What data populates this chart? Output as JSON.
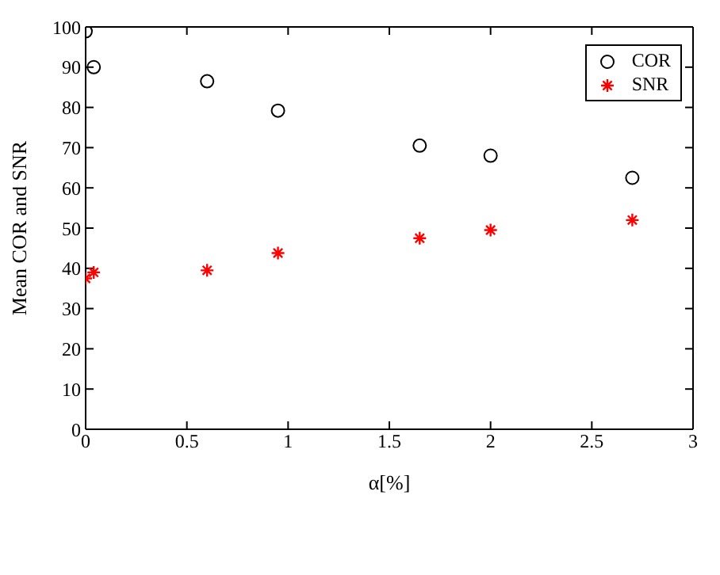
{
  "chart_data": {
    "type": "scatter",
    "xlabel": "α[%]",
    "ylabel": "Mean COR and SNR",
    "x": [
      0,
      0.04,
      0.6,
      0.95,
      1.65,
      2.0,
      2.7
    ],
    "series": [
      {
        "name": "COR",
        "color": "#000000",
        "marker": "circle",
        "values": [
          98.9,
          90,
          86.5,
          79.2,
          70.5,
          68,
          62.5
        ]
      },
      {
        "name": "SNR",
        "color": "#ff0000",
        "marker": "cross",
        "values": [
          37.5,
          39,
          39.5,
          43.8,
          47.5,
          49.5,
          52
        ]
      }
    ],
    "xlim": [
      0,
      3
    ],
    "xticks": [
      0,
      0.5,
      1,
      1.5,
      2,
      2.5,
      3
    ],
    "ylim": [
      0,
      100
    ],
    "yticks": [
      0,
      10,
      20,
      30,
      40,
      50,
      60,
      70,
      80,
      90,
      100
    ],
    "legend": "top right"
  }
}
